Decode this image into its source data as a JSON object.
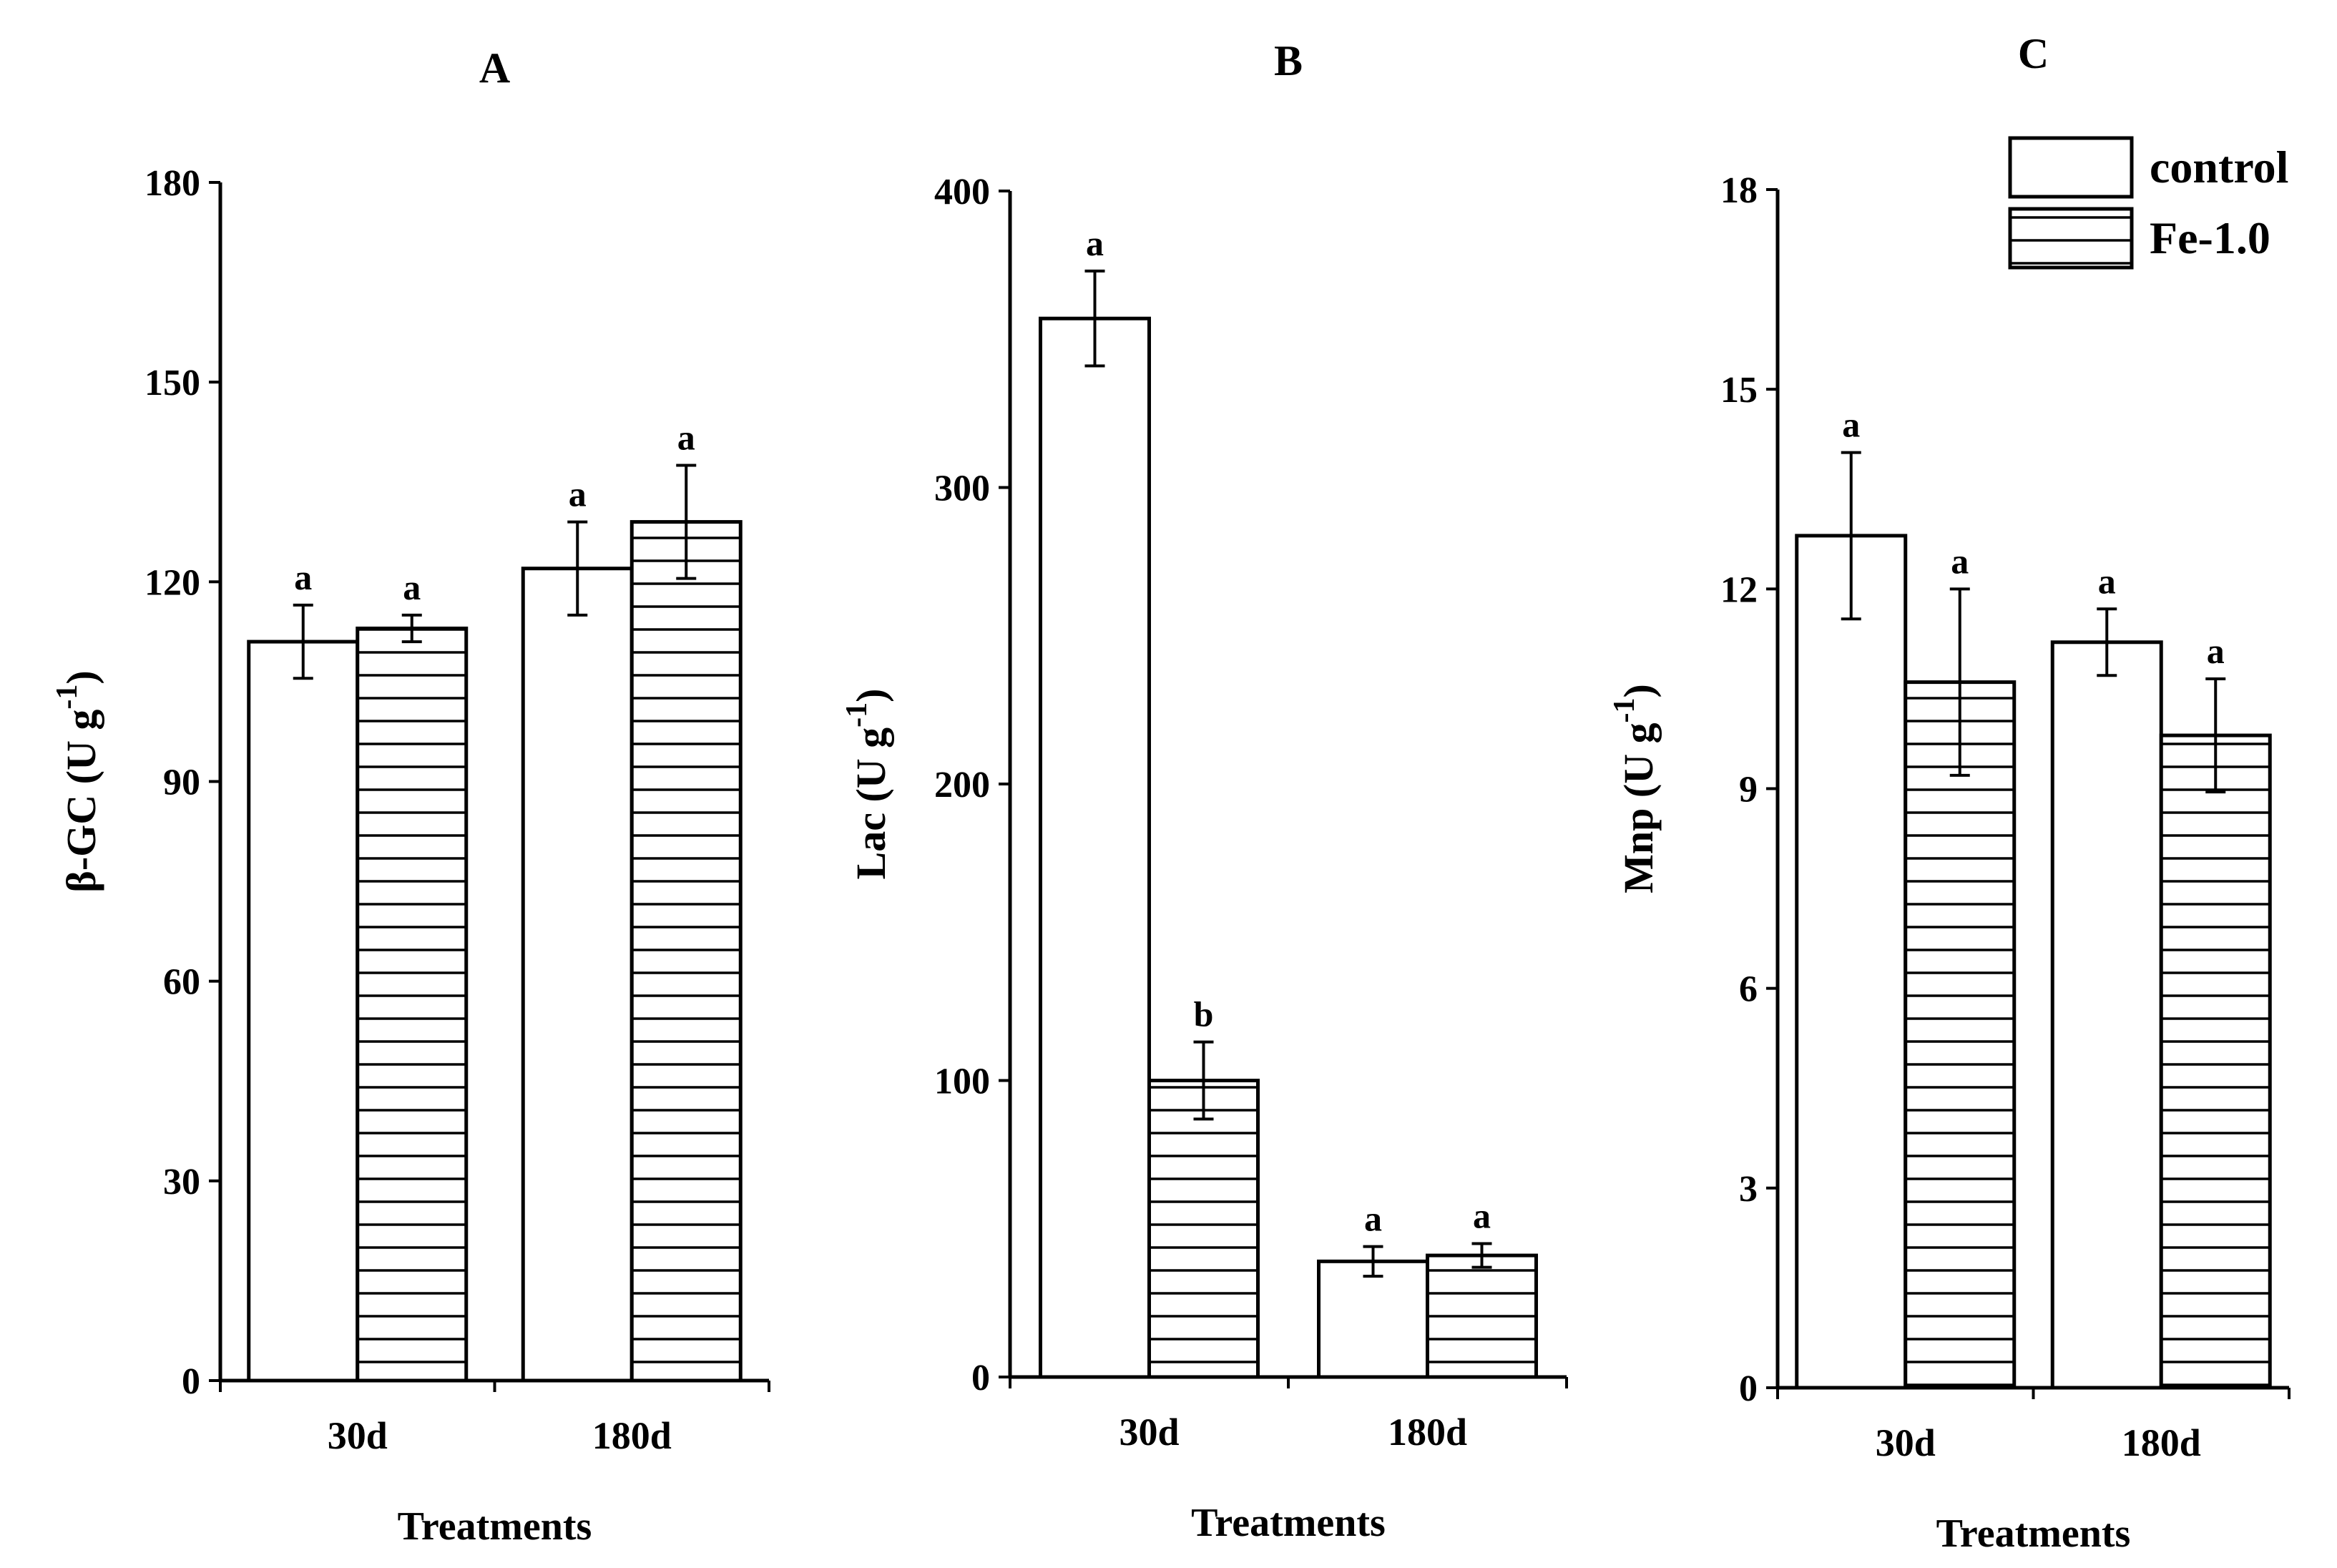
{
  "chart_data": [
    {
      "type": "bar",
      "title": "A",
      "xlabel": "Treatments",
      "ylabel": "β-GC",
      "yunit": "(U g",
      "yunit_exp": "-1",
      "yunit_close": ")",
      "ylim": [
        0,
        180
      ],
      "yticks": [
        "0",
        "30",
        "60",
        "90",
        "120",
        "150",
        "180"
      ],
      "categories": [
        "30d",
        "180d"
      ],
      "series": [
        {
          "name": "control",
          "values": [
            111,
            122
          ],
          "errors": [
            5.5,
            7
          ],
          "letters": [
            "a",
            "a"
          ]
        },
        {
          "name": "Fe-1.0",
          "values": [
            113,
            129
          ],
          "errors": [
            2,
            8.5
          ],
          "letters": [
            "a",
            "a"
          ]
        }
      ]
    },
    {
      "type": "bar",
      "title": "B",
      "xlabel": "Treatments",
      "ylabel": "Lac",
      "yunit": "(U g",
      "yunit_exp": "-1",
      "yunit_close": ")",
      "ylim": [
        0,
        400
      ],
      "yticks": [
        "0",
        "100",
        "200",
        "300",
        "400"
      ],
      "categories": [
        "30d",
        "180d"
      ],
      "series": [
        {
          "name": "control",
          "values": [
            357,
            39
          ],
          "errors": [
            16,
            5
          ],
          "letters": [
            "a",
            "a"
          ]
        },
        {
          "name": "Fe-1.0",
          "values": [
            100,
            41
          ],
          "errors": [
            13,
            4
          ],
          "letters": [
            "b",
            "a"
          ]
        }
      ]
    },
    {
      "type": "bar",
      "title": "C",
      "xlabel": "Treatments",
      "ylabel": "Mnp",
      "yunit": "(U g",
      "yunit_exp": "-1",
      "yunit_close": ")",
      "ylim": [
        0,
        18
      ],
      "yticks": [
        "0",
        "3",
        "6",
        "9",
        "12",
        "15",
        "18"
      ],
      "categories": [
        "30d",
        "180d"
      ],
      "series": [
        {
          "name": "control",
          "values": [
            12.8,
            11.2
          ],
          "errors": [
            1.25,
            0.5
          ],
          "letters": [
            "a",
            "a"
          ]
        },
        {
          "name": "Fe-1.0",
          "values": [
            10.6,
            9.8
          ],
          "errors": [
            1.4,
            0.85
          ],
          "letters": [
            "a",
            "a"
          ]
        }
      ]
    }
  ],
  "legend": {
    "items": [
      {
        "label": "control",
        "pattern": "open"
      },
      {
        "label": "Fe-1.0",
        "pattern": "horizontal-stripes"
      }
    ],
    "placement": "top-right"
  }
}
